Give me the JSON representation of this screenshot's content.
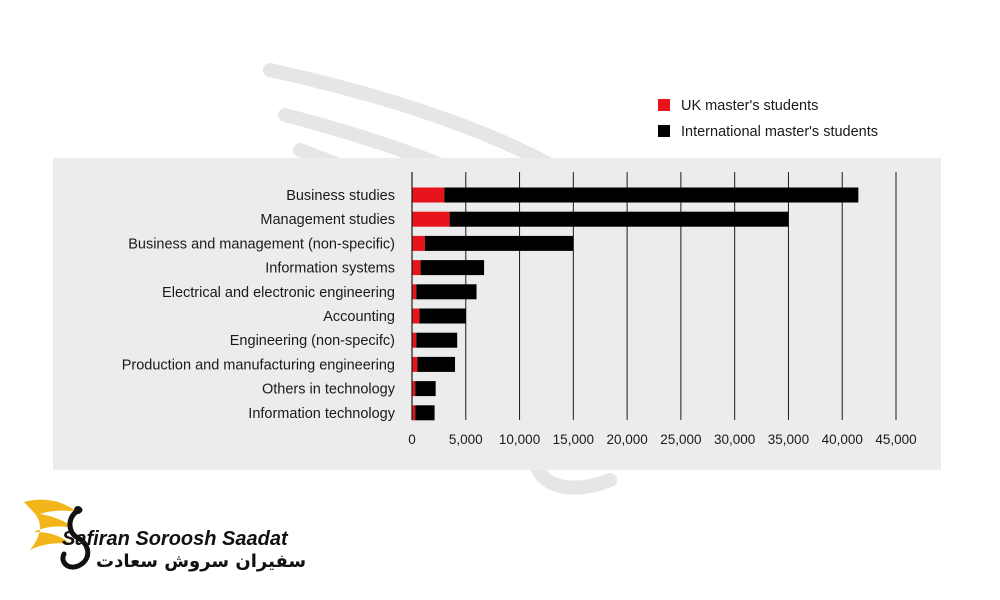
{
  "chart_data": {
    "type": "bar",
    "orientation": "horizontal",
    "stacked": true,
    "categories": [
      "Business studies",
      "Management studies",
      "Business and management (non-specific)",
      "Information systems",
      "Electrical and electronic engineering",
      "Accounting",
      "Engineering (non-specifc)",
      "Production and manufacturing engineering",
      "Others in technology",
      "Information technology"
    ],
    "series": [
      {
        "name": "UK master's students",
        "color": "#e8141c",
        "values": [
          3000,
          3500,
          1200,
          800,
          400,
          700,
          400,
          500,
          300,
          300
        ]
      },
      {
        "name": "International master's students",
        "color": "#000000",
        "values": [
          38500,
          31500,
          13800,
          5900,
          5600,
          4300,
          3800,
          3500,
          1900,
          1800
        ]
      }
    ],
    "xlim": [
      0,
      45000
    ],
    "xticks": [
      0,
      5000,
      10000,
      15000,
      20000,
      25000,
      30000,
      35000,
      40000,
      45000
    ],
    "xtick_labels": [
      "0",
      "5,000",
      "10,000",
      "15,000",
      "20,000",
      "25,000",
      "30,000",
      "35,000",
      "40,000",
      "45,000"
    ],
    "grid": "vertical",
    "legend_position": "top-right"
  },
  "logo": {
    "name_en": "Safiran Soroosh Saadat",
    "name_fa": "سفیران سروش سعادت"
  }
}
